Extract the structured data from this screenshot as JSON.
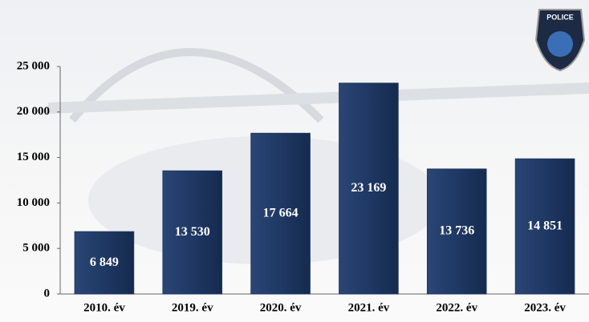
{
  "badge_text": "POLICE",
  "chart_data": {
    "type": "bar",
    "categories": [
      "2010. év",
      "2019. év",
      "2020. év",
      "2021. év",
      "2022. év",
      "2023. év"
    ],
    "values": [
      6849,
      13530,
      17664,
      23169,
      13736,
      14851
    ],
    "value_labels": [
      "6 849",
      "13 530",
      "17 664",
      "23 169",
      "13 736",
      "14 851"
    ],
    "color": "#1f3864",
    "ylim": [
      0,
      25000
    ],
    "yticks": [
      0,
      {
        "value": 5000,
        "label": "5 000"
      },
      {
        "value": 10000,
        "label": "10 000"
      },
      {
        "value": 15000,
        "label": "15 000"
      },
      {
        "value": 20000,
        "label": "20 000"
      },
      {
        "value": 25000,
        "label": "25 000"
      }
    ],
    "grid": false
  }
}
